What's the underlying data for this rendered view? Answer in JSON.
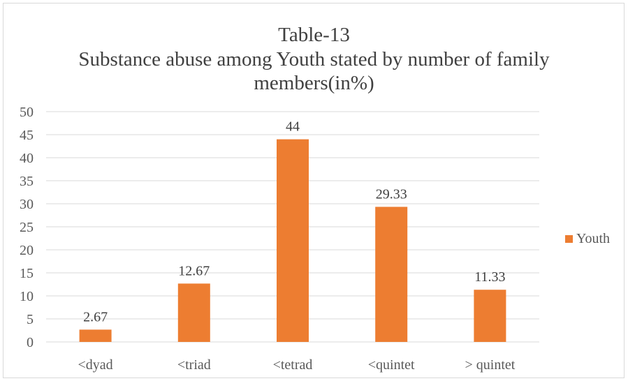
{
  "chart_data": {
    "type": "bar",
    "title": "Table-13",
    "subtitle_lines": [
      "Substance abuse among Youth stated by number of family",
      "members(in%)"
    ],
    "categories": [
      "<dyad",
      "<triad",
      "<tetrad",
      "<quintet",
      "> quintet"
    ],
    "series": [
      {
        "name": "Youth",
        "values": [
          2.67,
          12.67,
          44,
          29.33,
          11.33
        ],
        "labels": [
          "2.67",
          "12.67",
          "44",
          "29.33",
          "11.33"
        ]
      }
    ],
    "ylim": [
      0,
      50
    ],
    "yticks": [
      0,
      5,
      10,
      15,
      20,
      25,
      30,
      35,
      40,
      45,
      50
    ],
    "grid": true,
    "legend_position": "right",
    "colors": {
      "bar": "#ed7d31",
      "grid": "#d9d9d9",
      "text": "#595959"
    }
  }
}
